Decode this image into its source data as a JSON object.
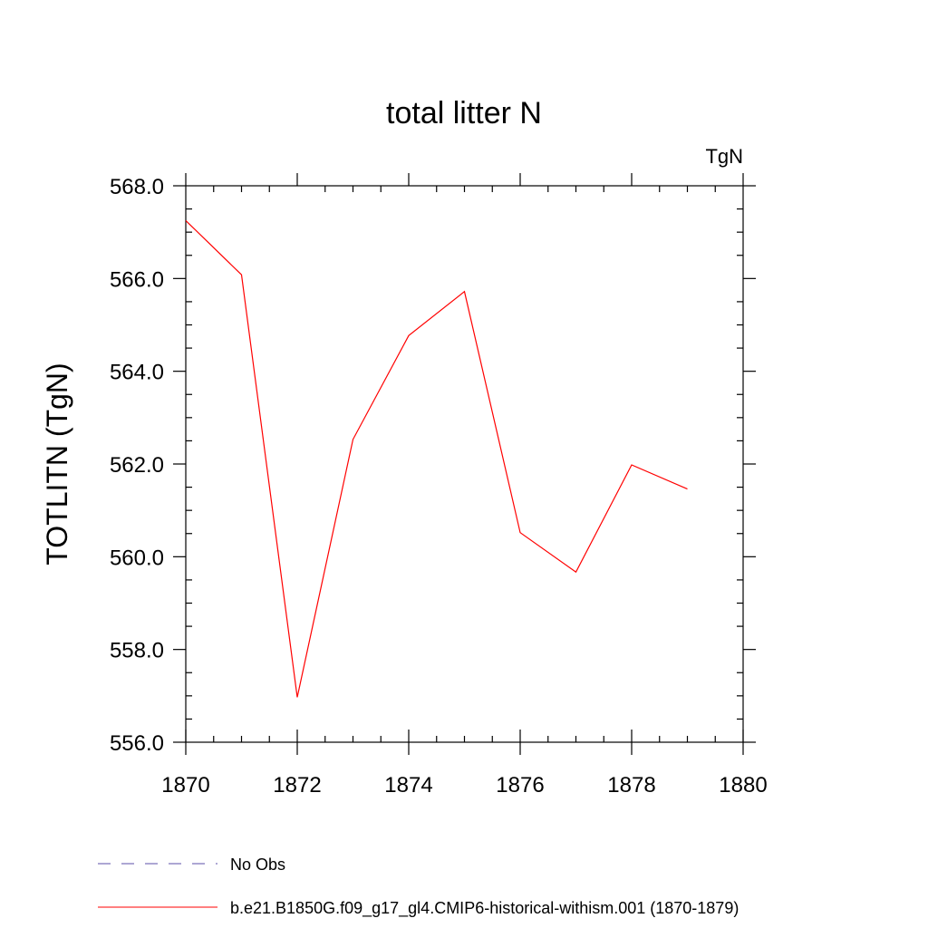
{
  "chart_data": {
    "type": "line",
    "title": "total litter N",
    "units_label": "TgN",
    "ylabel": "TOTLITN  (TgN)",
    "xlabel": "",
    "xlim": [
      1870,
      1880
    ],
    "ylim": [
      556.0,
      568.0
    ],
    "x_ticks": [
      1870,
      1872,
      1874,
      1876,
      1878,
      1880
    ],
    "x_tick_labels": [
      "1870",
      "1872",
      "1874",
      "1876",
      "1878",
      "1880"
    ],
    "y_ticks": [
      556.0,
      558.0,
      560.0,
      562.0,
      564.0,
      566.0,
      568.0
    ],
    "y_tick_labels": [
      "556.0",
      "558.0",
      "560.0",
      "562.0",
      "564.0",
      "566.0",
      "568.0"
    ],
    "x_minor_step": 0.5,
    "y_minor_step": 0.5,
    "grid": false,
    "legend_position": "bottom",
    "series": [
      {
        "name": "b.e21.B1850G.f09_g17_gl4.CMIP6-historical-withism.001 (1870-1879)",
        "color": "#ff0000",
        "x": [
          1870,
          1871,
          1872,
          1873,
          1874,
          1875,
          1876,
          1877,
          1878,
          1879
        ],
        "values": [
          567.25,
          566.08,
          556.97,
          562.53,
          564.77,
          565.72,
          560.52,
          559.67,
          561.98,
          561.46
        ]
      }
    ],
    "legend": [
      {
        "label": "No Obs",
        "color": "#5b4fa8",
        "style": "dashed"
      },
      {
        "label": "b.e21.B1850G.f09_g17_gl4.CMIP6-historical-withism.001 (1870-1879)",
        "color": "#ff0000",
        "style": "solid"
      }
    ]
  }
}
